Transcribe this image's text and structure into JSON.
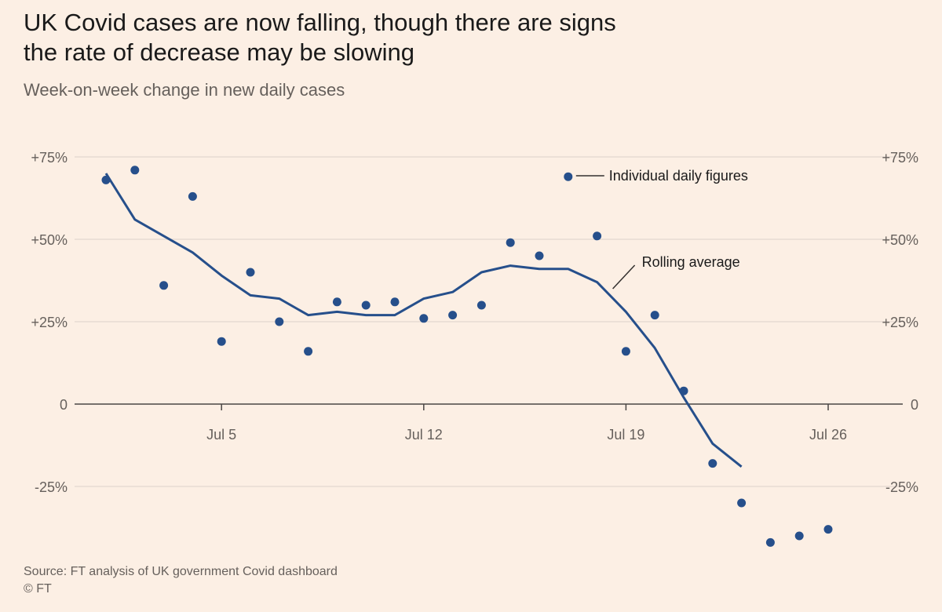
{
  "header": {
    "title_line1": "UK Covid cases are now falling, though there are signs",
    "title_line2": "the rate of decrease may be slowing",
    "subtitle": "Week-on-week change in new daily cases"
  },
  "footer": {
    "source": "Source: FT analysis of UK government Covid dashboard",
    "copyright": "© FT"
  },
  "colors": {
    "background": "#fcefe4",
    "series": "#264f8b",
    "grid": "#e3d8cf",
    "axis": "#66605c"
  },
  "chart_data": {
    "type": "line",
    "title": "UK Covid cases are now falling, though there are signs the rate of decrease may be slowing",
    "subtitle": "Week-on-week change in new daily cases",
    "xlabel": "",
    "ylabel": "",
    "x_ticks": [
      "Jul 5",
      "Jul 12",
      "Jul 19",
      "Jul 26"
    ],
    "y_ticks": [
      "+75%",
      "+50%",
      "+25%",
      "0",
      "-25%"
    ],
    "y_tick_values": [
      75,
      50,
      25,
      0,
      -25
    ],
    "ylim": [
      -43,
      75
    ],
    "xlim": [
      "Jun 30",
      "Jul 28"
    ],
    "grid": "horizontal",
    "axes_labels_both_sides": true,
    "series": [
      {
        "name": "Individual daily figures",
        "style": "dots",
        "x": [
          "Jul 1",
          "Jul 2",
          "Jul 3",
          "Jul 4",
          "Jul 5",
          "Jul 6",
          "Jul 7",
          "Jul 8",
          "Jul 9",
          "Jul 10",
          "Jul 11",
          "Jul 12",
          "Jul 13",
          "Jul 14",
          "Jul 15",
          "Jul 16",
          "Jul 17",
          "Jul 18",
          "Jul 19",
          "Jul 20",
          "Jul 21",
          "Jul 22",
          "Jul 23",
          "Jul 24",
          "Jul 25",
          "Jul 26"
        ],
        "values": [
          68,
          71,
          36,
          63,
          19,
          40,
          25,
          16,
          31,
          30,
          31,
          26,
          27,
          30,
          49,
          45,
          69,
          51,
          16,
          27,
          4,
          -18,
          -30,
          -42,
          -40,
          -38
        ]
      },
      {
        "name": "Rolling average",
        "style": "line",
        "x": [
          "Jul 1",
          "Jul 2",
          "Jul 3",
          "Jul 4",
          "Jul 5",
          "Jul 6",
          "Jul 7",
          "Jul 8",
          "Jul 9",
          "Jul 10",
          "Jul 11",
          "Jul 12",
          "Jul 13",
          "Jul 14",
          "Jul 15",
          "Jul 16",
          "Jul 17",
          "Jul 18",
          "Jul 19",
          "Jul 20",
          "Jul 21",
          "Jul 22",
          "Jul 23"
        ],
        "values": [
          70,
          56,
          51,
          46,
          39,
          33,
          32,
          27,
          28,
          27,
          27,
          32,
          34,
          40,
          42,
          41,
          41,
          37,
          28,
          17,
          2,
          -12,
          -19
        ]
      }
    ],
    "annotations": [
      {
        "text": "Individual daily figures",
        "anchor": "Jul 17"
      },
      {
        "text": "Rolling average",
        "anchor": "Jul 18"
      }
    ]
  }
}
